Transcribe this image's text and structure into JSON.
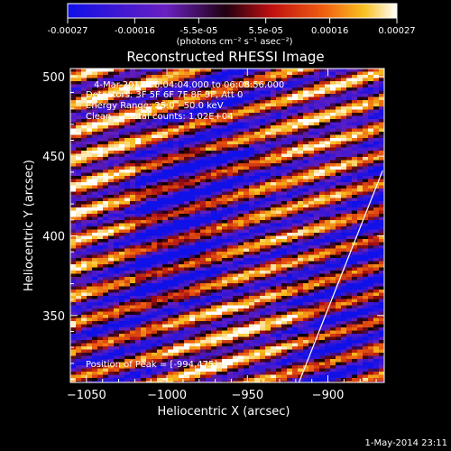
{
  "colorbar": {
    "tick_labels": [
      "-0.00027",
      "-0.00016",
      "-5.5e-05",
      "5.5e-05",
      "0.00016",
      "0.00027"
    ],
    "tick_values": [
      -0.00027,
      -0.00016,
      -5.5e-05,
      5.5e-05,
      0.00016,
      0.00027
    ],
    "range": [
      -0.00027,
      0.00027
    ],
    "units_label": "(photons cm⁻² s⁻¹ asec⁻²)"
  },
  "chart_data": {
    "type": "heatmap",
    "title": "Reconstructed RHESSI Image",
    "xlabel": "Heliocentric X (arcsec)",
    "ylabel": "Heliocentric Y (arcsec)",
    "xlim": [
      -1060,
      -865
    ],
    "ylim": [
      308,
      505
    ],
    "x_ticks": [
      -1050,
      -1000,
      -950,
      -900
    ],
    "x_tick_labels": [
      "−1050",
      "−1000",
      "−950",
      "−900"
    ],
    "y_ticks": [
      350,
      400,
      450,
      500
    ],
    "y_tick_labels": [
      "350",
      "400",
      "450",
      "500"
    ],
    "colormap": "blue-red-yellow-white",
    "limb_line": [
      {
        "x": -918,
        "y": 308
      },
      {
        "x": -866,
        "y": 441
      }
    ],
    "annotations": [
      "4-Mar-2012 06:04:04.000 to 06:08:56.000",
      "Detectors: 3F 5F 6F 7F 8F 9F, Att 0",
      "Energy Range: 25.0 - 50.0 keV",
      "Clean      Total counts: 1.02E+04"
    ],
    "peak_label": "Position of Peak = [-994,475]"
  },
  "footer": {
    "timestamp": "1-May-2014 23:11"
  }
}
